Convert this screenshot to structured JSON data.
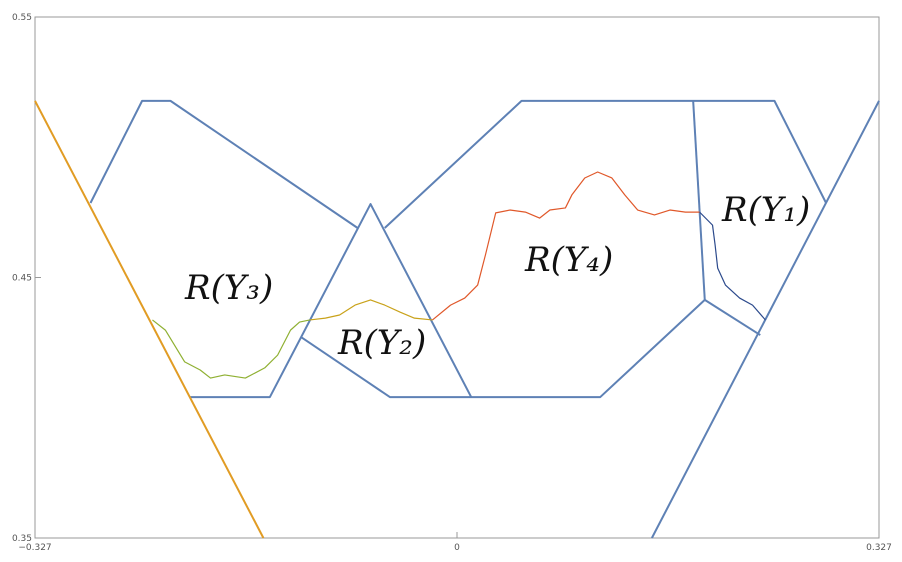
{
  "chart_data": {
    "type": "line",
    "xlim": [
      -0.327,
      0.327
    ],
    "ylim": [
      0.35,
      0.55
    ],
    "xticks": [
      {
        "value": -0.327,
        "label": "−0.327"
      },
      0,
      0.327
    ],
    "yticks": [
      0.35,
      0.45,
      0.55
    ],
    "annotations": [
      "R(Y₁)",
      "R(Y₄)",
      "R(Y₃)",
      "R(Y₂)"
    ],
    "series": [
      {
        "color": "#5e81b5",
        "x": [
          -0.284,
          -0.244,
          -0.222,
          -0.077
        ],
        "values": [
          0.4786,
          0.5178,
          0.5178,
          0.469
        ]
      },
      {
        "color": "#5e81b5",
        "x": [
          -0.207,
          -0.145,
          -0.067,
          0.011
        ],
        "values": [
          0.4041,
          0.4041,
          0.4782,
          0.4041
        ]
      },
      {
        "color": "#5e81b5",
        "x": [
          -0.121,
          -0.052,
          0.111,
          0.192,
          0.235
        ],
        "values": [
          0.4272,
          0.4041,
          0.4041,
          0.4414,
          0.4279
        ]
      },
      {
        "color": "#5e81b5",
        "x": [
          -0.056,
          0.05,
          0.246,
          0.286
        ],
        "values": [
          0.469,
          0.5178,
          0.5178,
          0.4786
        ]
      },
      {
        "color": "#5e81b5",
        "x": [
          0.183,
          0.192
        ],
        "values": [
          0.5178,
          0.4414
        ]
      },
      {
        "color": "#5e81b5",
        "x": [
          0.327,
          0.151
        ],
        "values": [
          0.5178,
          0.35
        ]
      },
      {
        "color": "#e19c24",
        "x": [
          -0.327,
          -0.15
        ],
        "values": [
          0.5178,
          0.35
        ]
      },
      {
        "color": "#8fb032",
        "x": [
          -0.236,
          -0.226,
          -0.219,
          -0.211,
          -0.199,
          -0.191,
          -0.18,
          -0.164,
          -0.149,
          -0.139,
          -0.129,
          -0.122,
          -0.114
        ],
        "values": [
          0.4337,
          0.4298,
          0.4241,
          0.4176,
          0.4145,
          0.4114,
          0.4126,
          0.4114,
          0.4153,
          0.4202,
          0.4298,
          0.4329,
          0.4337
        ]
      },
      {
        "color": "#c9a21a",
        "x": [
          -0.114,
          -0.102,
          -0.091,
          -0.079,
          -0.067,
          -0.056,
          -0.044,
          -0.033,
          -0.019
        ],
        "values": [
          0.4337,
          0.4344,
          0.4356,
          0.4394,
          0.4414,
          0.4394,
          0.4367,
          0.4344,
          0.4337
        ]
      },
      {
        "color": "#e0582a",
        "x": [
          -0.019,
          -0.005,
          0.006,
          0.016,
          0.022,
          0.03,
          0.041,
          0.053,
          0.064,
          0.072,
          0.084,
          0.089,
          0.099,
          0.109,
          0.12,
          0.13,
          0.14,
          0.153,
          0.165,
          0.177,
          0.188
        ],
        "values": [
          0.4337,
          0.4394,
          0.4421,
          0.4471,
          0.4586,
          0.4748,
          0.4759,
          0.4751,
          0.4728,
          0.4759,
          0.4767,
          0.4817,
          0.4882,
          0.4905,
          0.4882,
          0.4817,
          0.4759,
          0.474,
          0.4759,
          0.4751,
          0.4751
        ]
      },
      {
        "color": "#2c4a8c",
        "x": [
          0.188,
          0.198,
          0.2,
          0.202,
          0.208,
          0.219,
          0.229,
          0.239
        ],
        "values": [
          0.4751,
          0.4701,
          0.4625,
          0.4536,
          0.4471,
          0.4421,
          0.4394,
          0.4337
        ]
      }
    ]
  }
}
